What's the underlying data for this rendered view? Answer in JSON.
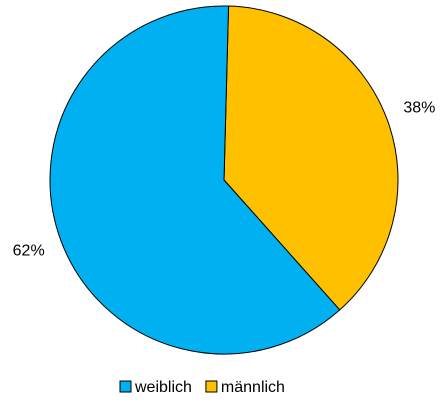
{
  "chart_data": {
    "type": "pie",
    "categories": [
      "weiblich",
      "männlich"
    ],
    "values": [
      62,
      38
    ],
    "value_labels": [
      "62%",
      "38%"
    ],
    "colors": [
      "#00b0f0",
      "#ffc000"
    ],
    "legend": "bottom"
  }
}
